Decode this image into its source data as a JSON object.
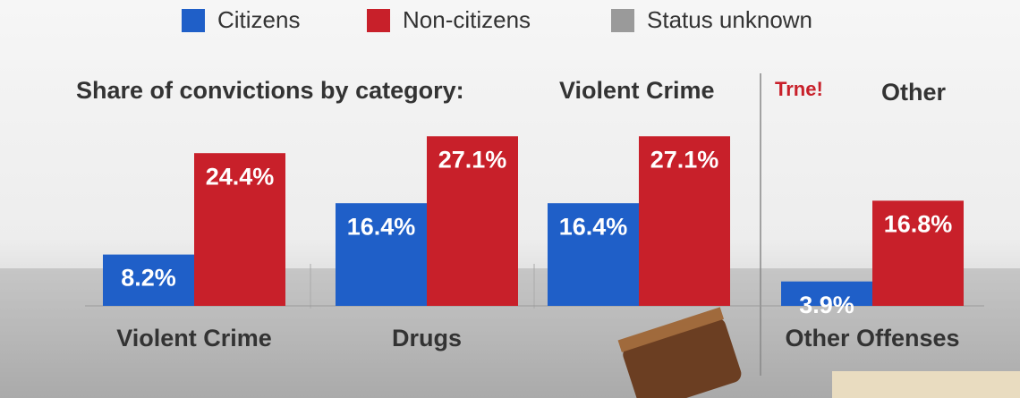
{
  "chart_data": {
    "type": "bar",
    "title": "Share of convictions by category:",
    "headers": [
      "Violent Crime",
      "Trne!",
      "Other"
    ],
    "categories": [
      "Violent Crime",
      "Drugs",
      null,
      "Other Offenses"
    ],
    "series": [
      {
        "name": "Citizens",
        "color": "#1f5fc8",
        "values": [
          8.2,
          16.4,
          16.4,
          3.9
        ],
        "value_labels": [
          "8.2%",
          "16.4%",
          "16.4%",
          "3.9%"
        ]
      },
      {
        "name": "Non-citizens",
        "color": "#c8202a",
        "values": [
          24.4,
          27.1,
          27.1,
          16.8
        ],
        "value_labels": [
          "24.4%",
          "27.1%",
          "27.1%",
          "16.8%"
        ]
      },
      {
        "name": "Status unknown",
        "color": "#9a9a9a",
        "values": [
          null,
          null,
          null,
          null
        ]
      }
    ],
    "ylim": [
      0,
      30
    ]
  }
}
